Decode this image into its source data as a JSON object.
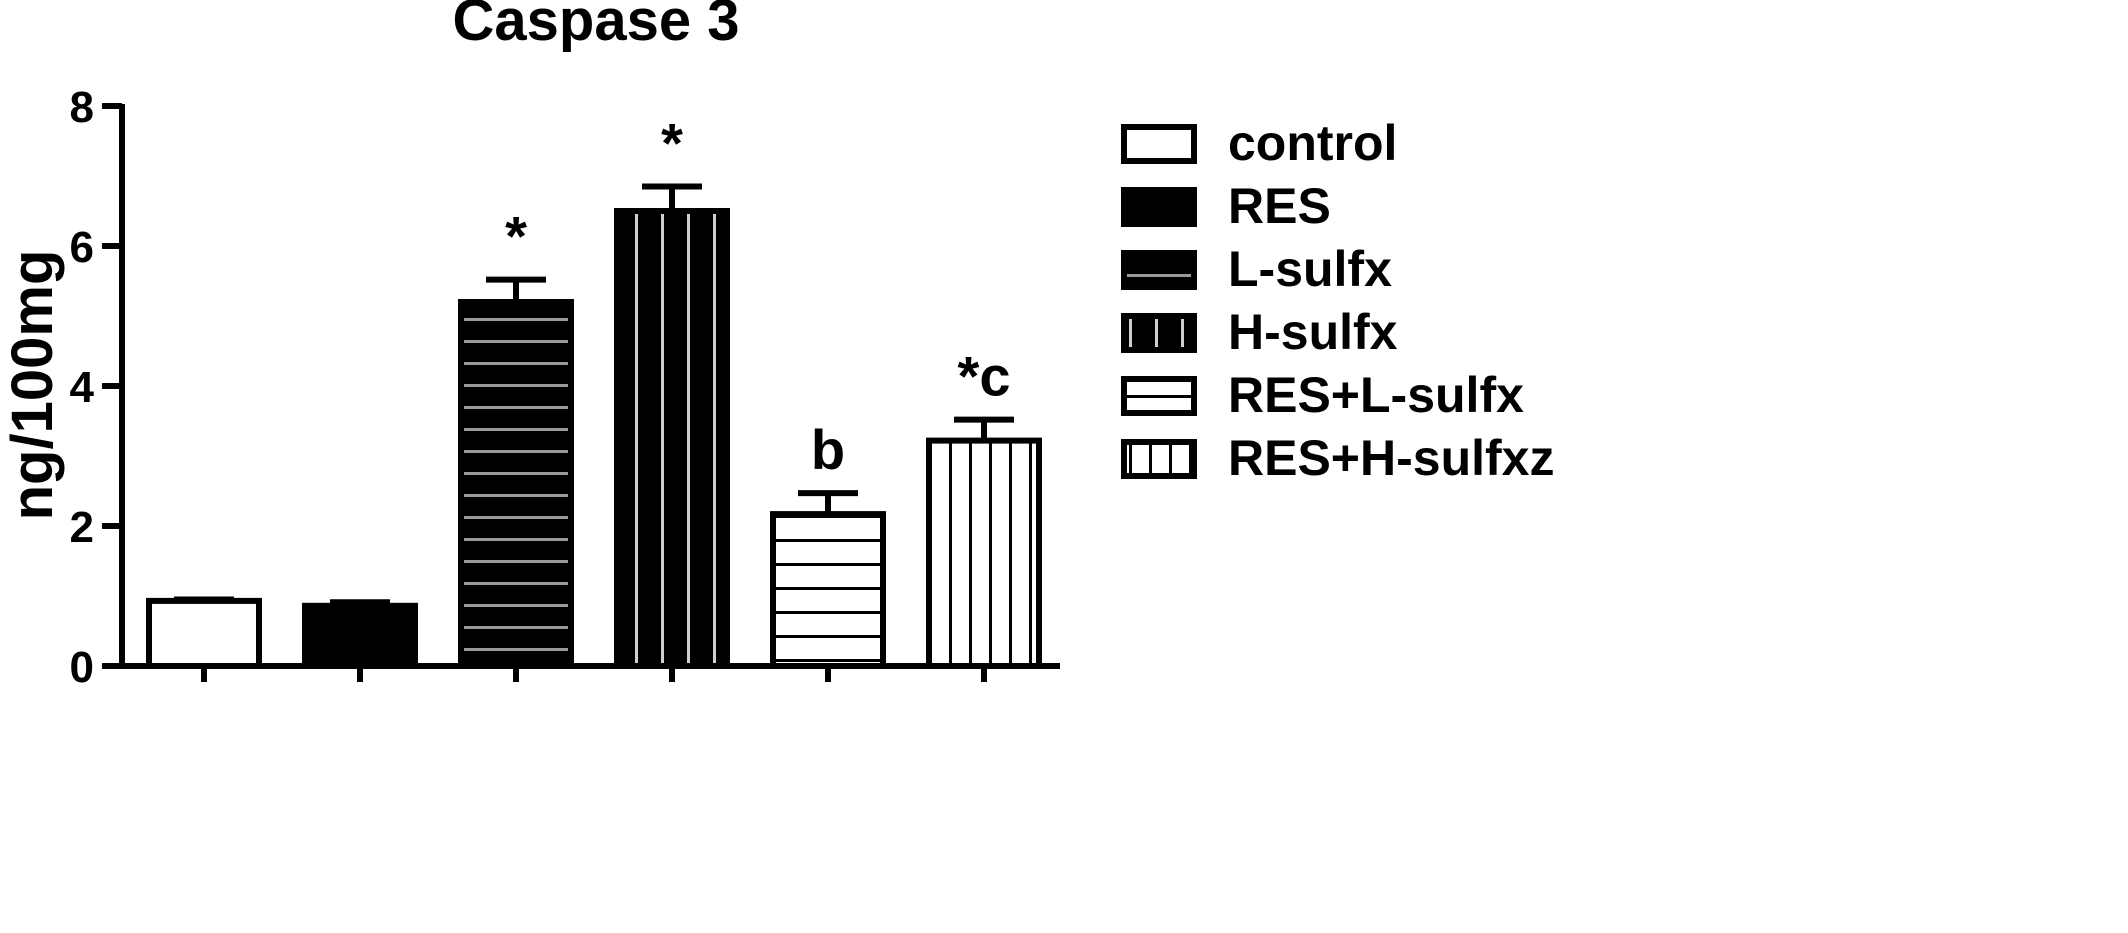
{
  "chart_data": {
    "type": "bar",
    "title": "Caspase 3",
    "xlabel": "",
    "ylabel": "ng/100mg",
    "ylim": [
      0,
      8
    ],
    "yticks": [
      "0",
      "2",
      "4",
      "6",
      "8"
    ],
    "categories": [
      "control",
      "RES",
      "L-sulfx",
      "H-sulfx",
      "RES+L-sulfx",
      "RES+H-sulfxz"
    ],
    "values": [
      0.93,
      0.86,
      5.2,
      6.5,
      2.17,
      3.22
    ],
    "errors": [
      0.02,
      0.05,
      0.32,
      0.35,
      0.3,
      0.3
    ],
    "annotations": [
      "",
      "",
      "*",
      "*",
      "b",
      "*c"
    ],
    "patterns": [
      "empty",
      "solid",
      "h-gray",
      "v-white",
      "h-black",
      "v-black"
    ],
    "legend": {
      "placement": "right",
      "entries": [
        "control",
        "RES",
        "L-sulfx",
        "H-sulfx",
        "RES+L-sulfx",
        "RES+H-sulfxz"
      ]
    },
    "grid": false
  }
}
